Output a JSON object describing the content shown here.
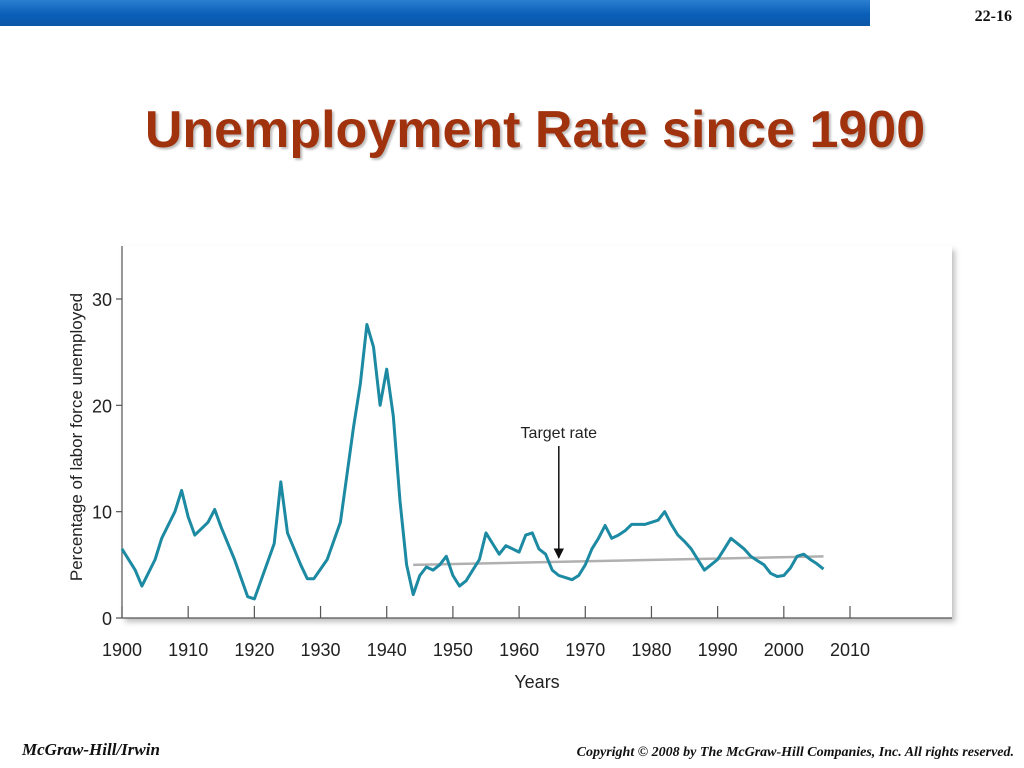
{
  "slide": {
    "number": "22-16",
    "title": "Unemployment Rate since 1900",
    "footer_left": "McGraw-Hill/Irwin",
    "footer_right": "Copyright © 2008 by The McGraw-Hill Companies, Inc. All rights reserved."
  },
  "colors": {
    "title": "#a0320e",
    "series": "#1c8aa2",
    "target_line": "#b0b0b0",
    "top_bar": "#0a5fb8"
  },
  "chart_data": {
    "type": "line",
    "xlabel": "Years",
    "ylabel": "Percentage of labor force unemployed",
    "xlim": [
      1900,
      2010
    ],
    "ylim": [
      0,
      30
    ],
    "x_ticks": [
      1900,
      1910,
      1920,
      1930,
      1940,
      1950,
      1960,
      1970,
      1980,
      1990,
      2000,
      2010
    ],
    "y_ticks": [
      0,
      10,
      20,
      30
    ],
    "grid": false,
    "series": [
      {
        "values": [
          [
            1900,
            6.5
          ],
          [
            1902,
            4.5
          ],
          [
            1903,
            3.0
          ],
          [
            1905,
            5.5
          ],
          [
            1906,
            7.5
          ],
          [
            1908,
            10.0
          ],
          [
            1909,
            12.0
          ],
          [
            1910,
            9.5
          ],
          [
            1911,
            7.8
          ],
          [
            1913,
            9.0
          ],
          [
            1914,
            10.2
          ],
          [
            1915,
            8.5
          ],
          [
            1917,
            5.5
          ],
          [
            1919,
            2.0
          ],
          [
            1920,
            1.8
          ],
          [
            1923,
            7.0
          ],
          [
            1924,
            12.8
          ],
          [
            1925,
            8.0
          ],
          [
            1927,
            5.0
          ],
          [
            1928,
            3.7
          ],
          [
            1929,
            3.7
          ],
          [
            1931,
            5.5
          ],
          [
            1933,
            9.0
          ],
          [
            1935,
            18.0
          ],
          [
            1936,
            22.0
          ],
          [
            1937,
            27.6
          ],
          [
            1938,
            25.5
          ],
          [
            1939,
            20.0
          ],
          [
            1940,
            23.4
          ],
          [
            1941,
            19.0
          ],
          [
            1942,
            11.0
          ],
          [
            1943,
            5.0
          ],
          [
            1944,
            2.2
          ],
          [
            1945,
            4.0
          ],
          [
            1946,
            4.8
          ],
          [
            1947,
            4.5
          ],
          [
            1948,
            5.0
          ],
          [
            1949,
            5.8
          ],
          [
            1950,
            4.0
          ],
          [
            1951,
            3.0
          ],
          [
            1952,
            3.5
          ],
          [
            1953,
            4.5
          ],
          [
            1954,
            5.5
          ],
          [
            1955,
            8.0
          ],
          [
            1956,
            7.0
          ],
          [
            1957,
            6.0
          ],
          [
            1958,
            6.8
          ],
          [
            1959,
            6.5
          ],
          [
            1960,
            6.2
          ],
          [
            1961,
            7.8
          ],
          [
            1962,
            8.0
          ],
          [
            1963,
            6.5
          ],
          [
            1964,
            6.0
          ],
          [
            1965,
            4.5
          ],
          [
            1966,
            4.0
          ],
          [
            1967,
            3.8
          ],
          [
            1968,
            3.6
          ],
          [
            1969,
            4.0
          ],
          [
            1970,
            5.0
          ],
          [
            1971,
            6.5
          ],
          [
            1972,
            7.5
          ],
          [
            1973,
            8.7
          ],
          [
            1974,
            7.5
          ],
          [
            1975,
            7.8
          ],
          [
            1976,
            8.2
          ],
          [
            1977,
            8.8
          ],
          [
            1978,
            8.8
          ],
          [
            1979,
            8.8
          ],
          [
            1980,
            9.0
          ],
          [
            1981,
            9.2
          ],
          [
            1982,
            10.0
          ],
          [
            1983,
            8.8
          ],
          [
            1984,
            7.8
          ],
          [
            1985,
            7.2
          ],
          [
            1986,
            6.5
          ],
          [
            1987,
            5.5
          ],
          [
            1988,
            4.5
          ],
          [
            1989,
            5.0
          ],
          [
            1990,
            5.5
          ],
          [
            1991,
            6.5
          ],
          [
            1992,
            7.5
          ],
          [
            1993,
            7.0
          ],
          [
            1994,
            6.5
          ],
          [
            1995,
            5.8
          ],
          [
            1996,
            5.4
          ],
          [
            1997,
            5.0
          ],
          [
            1998,
            4.2
          ],
          [
            1999,
            3.9
          ],
          [
            2000,
            4.0
          ],
          [
            2001,
            4.7
          ],
          [
            2002,
            5.8
          ],
          [
            2003,
            6.0
          ],
          [
            2004,
            5.5
          ],
          [
            2005,
            5.1
          ],
          [
            2006,
            4.6
          ]
        ]
      }
    ],
    "target_rate": {
      "label": "Target rate",
      "start": [
        1944,
        5.0
      ],
      "end": [
        2006,
        5.8
      ],
      "arrow_year": 1966
    }
  }
}
